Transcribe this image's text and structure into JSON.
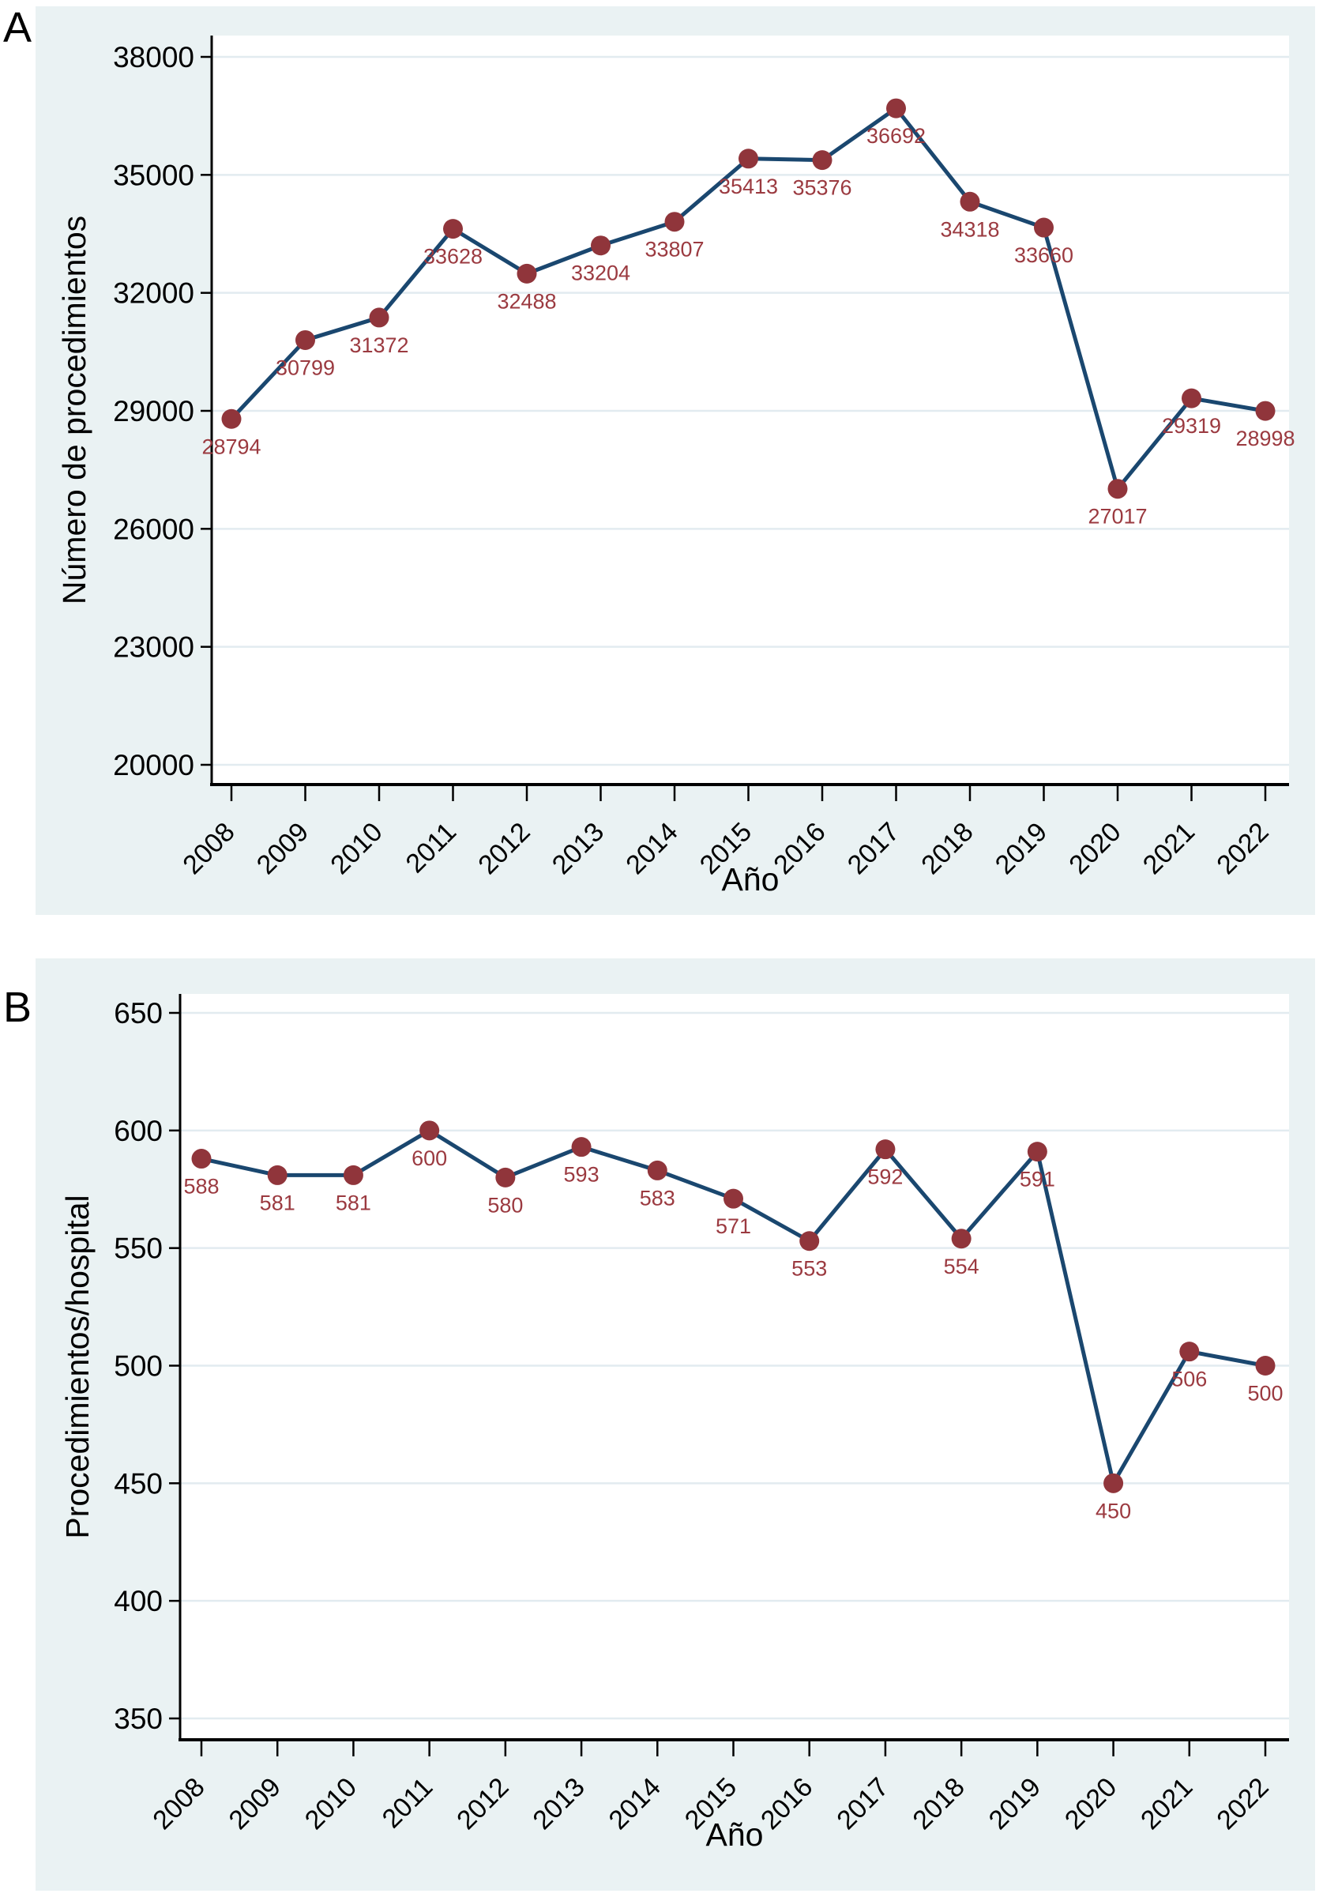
{
  "page": {
    "background": "#ffffff"
  },
  "panels": [
    {
      "letter": "A"
    },
    {
      "letter": "B"
    }
  ],
  "chart_data": [
    {
      "type": "line",
      "panel": "A",
      "xlabel": "Año",
      "ylabel": "Número de procedimientos",
      "x": [
        2008,
        2009,
        2010,
        2011,
        2012,
        2013,
        2014,
        2015,
        2016,
        2017,
        2018,
        2019,
        2020,
        2021,
        2022
      ],
      "values": [
        28794,
        30799,
        31372,
        33628,
        32488,
        33204,
        33807,
        35413,
        35376,
        36692,
        34318,
        33660,
        27017,
        29319,
        28998
      ],
      "point_labels": [
        "28794",
        "30799",
        "31372",
        "33628",
        "32488",
        "33204",
        "33807",
        "35413",
        "35376",
        "36692",
        "34318",
        "33660",
        "27017",
        "29319",
        "28998"
      ],
      "xticks": [
        "2008",
        "2009",
        "2010",
        "2011",
        "2012",
        "2013",
        "2014",
        "2015",
        "2016",
        "2017",
        "2018",
        "2019",
        "2020",
        "2021",
        "2022"
      ],
      "yticks": [
        20000,
        23000,
        26000,
        29000,
        32000,
        35000,
        38000
      ],
      "ylim": [
        20000,
        38000
      ],
      "grid": true,
      "legend": "none",
      "colors": {
        "figure_background": "#eaf2f3",
        "plot_background": "#ffffff",
        "gridline": "#e2ebf0",
        "line": "#1a476f",
        "marker": "#90353b",
        "point_label": "#9b3a40",
        "axis": "#000000",
        "text": "#000000"
      }
    },
    {
      "type": "line",
      "panel": "B",
      "xlabel": "Año",
      "ylabel": "Procedimientos/hospital",
      "x": [
        2008,
        2009,
        2010,
        2011,
        2012,
        2013,
        2014,
        2015,
        2016,
        2017,
        2018,
        2019,
        2020,
        2021,
        2022
      ],
      "values": [
        588,
        581,
        581,
        600,
        580,
        593,
        583,
        571,
        553,
        592,
        554,
        591,
        450,
        506,
        500
      ],
      "point_labels": [
        "588",
        "581",
        "581",
        "600",
        "580",
        "593",
        "583",
        "571",
        "553",
        "592",
        "554",
        "591",
        "450",
        "506",
        "500"
      ],
      "xticks": [
        "2008",
        "2009",
        "2010",
        "2011",
        "2012",
        "2013",
        "2014",
        "2015",
        "2016",
        "2017",
        "2018",
        "2019",
        "2020",
        "2021",
        "2022"
      ],
      "yticks": [
        350,
        400,
        450,
        500,
        550,
        600,
        650
      ],
      "ylim": [
        350,
        650
      ],
      "grid": true,
      "legend": "none",
      "colors": {
        "figure_background": "#eaf2f3",
        "plot_background": "#ffffff",
        "gridline": "#e2ebf0",
        "line": "#1a476f",
        "marker": "#90353b",
        "point_label": "#9b3a40",
        "axis": "#000000",
        "text": "#000000"
      }
    }
  ]
}
